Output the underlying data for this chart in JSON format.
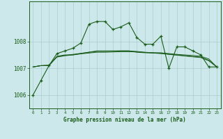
{
  "title": "Graphe pression niveau de la mer (hPa)",
  "bg_color": "#cce8ea",
  "line_color": "#1a5c1a",
  "grid_color": "#aacccc",
  "ylim": [
    1005.5,
    1009.5
  ],
  "xlim": [
    -0.5,
    23.5
  ],
  "yticks": [
    1006,
    1007,
    1008
  ],
  "xticks": [
    0,
    1,
    2,
    3,
    4,
    5,
    6,
    7,
    8,
    9,
    10,
    11,
    12,
    13,
    14,
    15,
    16,
    17,
    18,
    19,
    20,
    21,
    22,
    23
  ],
  "main_series": [
    1006.0,
    1006.55,
    1007.1,
    1007.55,
    1007.65,
    1007.75,
    1007.95,
    1008.65,
    1008.75,
    1008.75,
    1008.45,
    1008.55,
    1008.7,
    1008.15,
    1007.9,
    1007.9,
    1008.2,
    1007.0,
    1007.8,
    1007.8,
    1007.65,
    1007.5,
    1007.05,
    1007.05
  ],
  "line2": [
    1007.05,
    1007.1,
    1007.1,
    1007.45,
    1007.5,
    1007.5,
    1007.55,
    1007.6,
    1007.65,
    1007.65,
    1007.65,
    1007.65,
    1007.65,
    1007.6,
    1007.58,
    1007.58,
    1007.58,
    1007.55,
    1007.52,
    1007.5,
    1007.48,
    1007.45,
    1007.35,
    1007.05
  ],
  "line3": [
    1007.05,
    1007.1,
    1007.1,
    1007.43,
    1007.48,
    1007.52,
    1007.56,
    1007.6,
    1007.63,
    1007.63,
    1007.64,
    1007.65,
    1007.65,
    1007.63,
    1007.6,
    1007.58,
    1007.56,
    1007.53,
    1007.5,
    1007.47,
    1007.44,
    1007.42,
    1007.3,
    1007.05
  ],
  "line4": [
    1007.05,
    1007.1,
    1007.12,
    1007.42,
    1007.47,
    1007.5,
    1007.54,
    1007.57,
    1007.6,
    1007.6,
    1007.61,
    1007.62,
    1007.62,
    1007.61,
    1007.59,
    1007.57,
    1007.55,
    1007.52,
    1007.49,
    1007.46,
    1007.43,
    1007.4,
    1007.28,
    1007.05
  ]
}
